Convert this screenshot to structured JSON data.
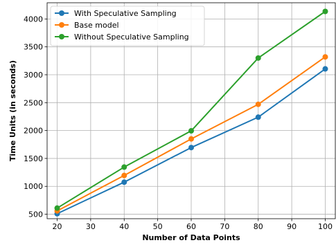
{
  "chart_data": {
    "type": "line",
    "title": "",
    "xlabel": "Number of Data Points",
    "ylabel": "Time Units (in seconds)",
    "x": [
      20,
      40,
      60,
      80,
      100
    ],
    "xlim": [
      17,
      103
    ],
    "ylim": [
      420,
      4290
    ],
    "xticks": [
      20,
      30,
      40,
      50,
      60,
      70,
      80,
      90,
      100
    ],
    "yticks": [
      500,
      1000,
      1500,
      2000,
      2500,
      3000,
      3500,
      4000
    ],
    "grid": true,
    "legend_position": "top-left",
    "series": [
      {
        "name": "With Speculative Sampling",
        "color": "#1f77b4",
        "values": [
          510,
          1075,
          1695,
          2240,
          3105
        ]
      },
      {
        "name": "Base model",
        "color": "#ff7f0e",
        "values": [
          560,
          1195,
          1850,
          2470,
          3320
        ]
      },
      {
        "name": "Without Speculative Sampling",
        "color": "#2ca02c",
        "values": [
          610,
          1345,
          1995,
          3300,
          4135
        ]
      }
    ]
  }
}
